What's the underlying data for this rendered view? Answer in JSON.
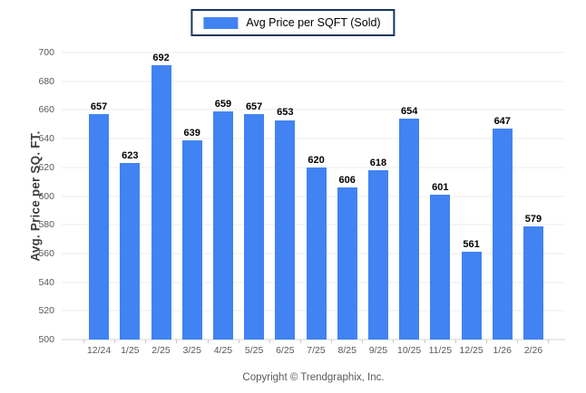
{
  "legend": {
    "label": "Avg Price per SQFT (Sold)"
  },
  "y_axis_title": "Avg. Price per SQ. FT.",
  "footer": "Copyright © Trendgraphix, Inc.",
  "colors": {
    "bar": "#4183f2",
    "legend_border": "#17365d",
    "gridline": "#ececec",
    "baseline": "#d6d6d6",
    "tick_label": "#595959",
    "value_label": "#000000",
    "axis_title": "#3f3f3f",
    "footer_text": "#595959"
  },
  "chart_data": {
    "type": "bar",
    "title": "Avg Price per SQFT (Sold)",
    "categories": [
      "12/24",
      "1/25",
      "2/25",
      "3/25",
      "4/25",
      "5/25",
      "6/25",
      "7/25",
      "8/25",
      "9/25",
      "10/25",
      "11/25",
      "12/25",
      "1/26",
      "2/26"
    ],
    "values": [
      657,
      623,
      692,
      639,
      659,
      657,
      653,
      620,
      606,
      618,
      654,
      601,
      561,
      647,
      579
    ],
    "xlabel": "",
    "ylabel": "Avg. Price per SQ. FT.",
    "ylim": [
      500,
      700
    ],
    "ytick_step": 20,
    "grid": true,
    "legend_position": "top-center",
    "bar_color": "#4183f2",
    "value_labels": true
  }
}
